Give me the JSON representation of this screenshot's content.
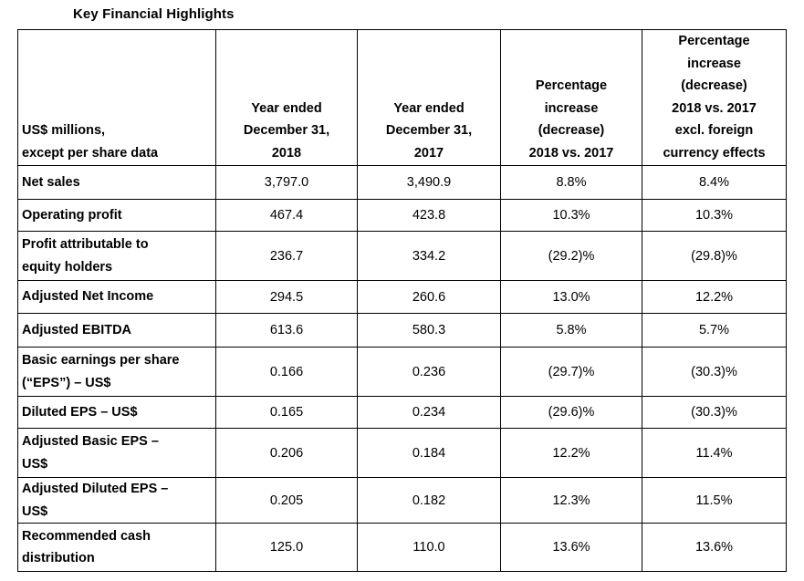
{
  "title": "Key Financial Highlights",
  "header": {
    "col0": [
      "US$ millions,",
      "except per share data"
    ],
    "col1": [
      "Year ended",
      "December 31,",
      "2018"
    ],
    "col2": [
      "Year ended",
      "December 31,",
      "2017"
    ],
    "col3": [
      "Percentage",
      "increase",
      "(decrease)",
      "2018 vs. 2017"
    ],
    "col4": [
      "Percentage",
      "increase",
      "(decrease)",
      "2018 vs. 2017",
      "excl. foreign",
      "currency effects"
    ]
  },
  "rows": [
    {
      "label": [
        "Net sales"
      ],
      "y2018": "3,797.0",
      "y2017": "3,490.9",
      "pct": "8.8%",
      "pct_fx": "8.4%"
    },
    {
      "label": [
        "Operating profit"
      ],
      "y2018": "467.4",
      "y2017": "423.8",
      "pct": "10.3%",
      "pct_fx": "10.3%"
    },
    {
      "label": [
        "Profit attributable to",
        "equity holders"
      ],
      "y2018": "236.7",
      "y2017": "334.2",
      "pct": "(29.2)%",
      "pct_fx": "(29.8)%"
    },
    {
      "label": [
        "Adjusted Net Income"
      ],
      "y2018": "294.5",
      "y2017": "260.6",
      "pct": "13.0%",
      "pct_fx": "12.2%"
    },
    {
      "label": [
        "Adjusted EBITDA"
      ],
      "y2018": "613.6",
      "y2017": "580.3",
      "pct": "5.8%",
      "pct_fx": "5.7%"
    },
    {
      "label": [
        "Basic earnings per share",
        "(“EPS”) – US$"
      ],
      "y2018": "0.166",
      "y2017": "0.236",
      "pct": "(29.7)%",
      "pct_fx": "(30.3)%"
    },
    {
      "label": [
        "Diluted EPS – US$"
      ],
      "y2018": "0.165",
      "y2017": "0.234",
      "pct": "(29.6)%",
      "pct_fx": "(30.3)%"
    },
    {
      "label": [
        "Adjusted Basic EPS –",
        "US$"
      ],
      "y2018": "0.206",
      "y2017": "0.184",
      "pct": "12.2%",
      "pct_fx": "11.4%"
    },
    {
      "label": [
        "Adjusted Diluted EPS –",
        "US$"
      ],
      "y2018": "0.205",
      "y2017": "0.182",
      "pct": "12.3%",
      "pct_fx": "11.5%"
    },
    {
      "label": [
        "Recommended cash",
        "distribution"
      ],
      "y2018": "125.0",
      "y2017": "110.0",
      "pct": "13.6%",
      "pct_fx": "13.6%"
    }
  ]
}
